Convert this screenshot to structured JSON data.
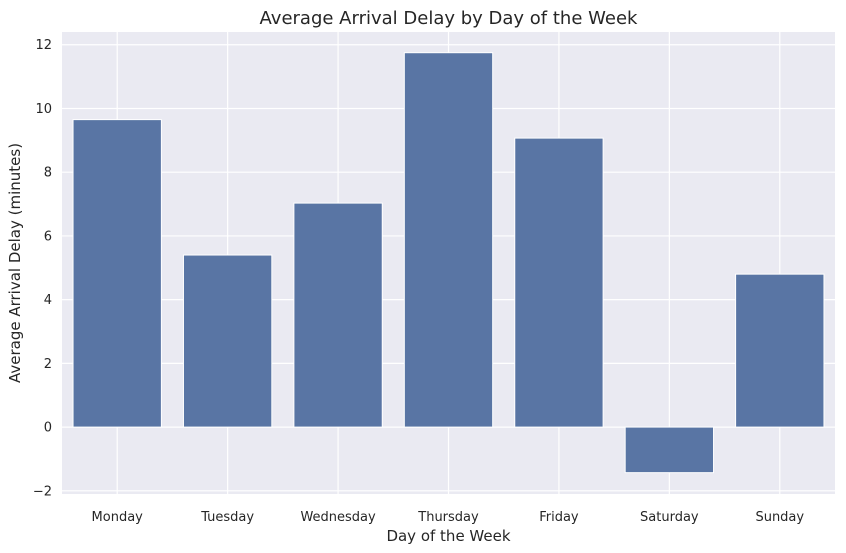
{
  "colors": {
    "plot_background": "#eaeaf2",
    "bar": "#5975a4",
    "grid": "#ffffff",
    "text": "#262626"
  },
  "chart_data": {
    "type": "bar",
    "title": "Average Arrival Delay by Day of the Week",
    "xlabel": "Day of the Week",
    "ylabel": "Average Arrival Delay (minutes)",
    "categories": [
      "Monday",
      "Tuesday",
      "Wednesday",
      "Thursday",
      "Friday",
      "Saturday",
      "Sunday"
    ],
    "values": [
      9.65,
      5.4,
      7.03,
      11.75,
      9.07,
      -1.43,
      4.8
    ],
    "ylim": [
      -2.1,
      12.4
    ],
    "yticks": [
      -2,
      0,
      2,
      4,
      6,
      8,
      10,
      12
    ],
    "grid": true,
    "legend": "none"
  }
}
